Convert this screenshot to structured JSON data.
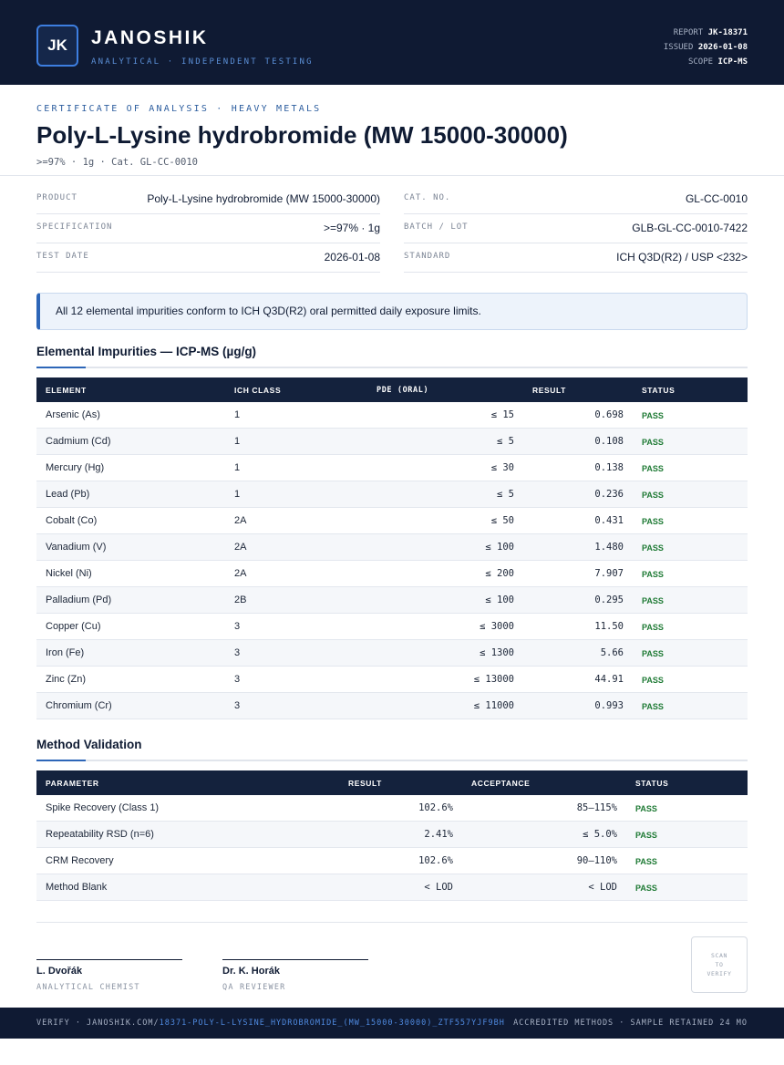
{
  "header": {
    "logo": "JK",
    "brand": "JANOSHIK",
    "tagline": "ANALYTICAL · INDEPENDENT TESTING",
    "report_label": "REPORT",
    "report_value": "JK-18371",
    "issued_label": "ISSUED",
    "issued_value": "2026-01-08",
    "scope_label": "SCOPE",
    "scope_value": "ICP-MS"
  },
  "title_block": {
    "overline": "CERTIFICATE OF ANALYSIS · HEAVY METALS",
    "title": "Poly-L-Lysine hydrobromide (MW 15000-30000)",
    "subline": ">=97% · 1g  ·  Cat. GL-CC-0010"
  },
  "info": {
    "product_label": "PRODUCT",
    "product_value": "Poly-L-Lysine hydrobromide (MW 15000-30000)",
    "cat_label": "CAT. NO.",
    "cat_value": "GL-CC-0010",
    "spec_label": "SPECIFICATION",
    "spec_value": ">=97% · 1g",
    "batch_label": "BATCH / LOT",
    "batch_value": "GLB-GL-CC-0010-7422",
    "date_label": "TEST DATE",
    "date_value": "2026-01-08",
    "standard_label": "STANDARD",
    "standard_value": "ICH Q3D(R2) / USP <232>"
  },
  "notice": "All 12 elemental impurities conform to ICH Q3D(R2) oral permitted daily exposure limits.",
  "impurities": {
    "title": "Elemental Impurities — ICP-MS (µg/g)",
    "headers": [
      "ELEMENT",
      "ICH CLASS",
      "PDE (ORAL)",
      "RESULT",
      "STATUS"
    ],
    "rows": [
      {
        "element": "Arsenic (As)",
        "class": "1",
        "pde": "≤ 15",
        "result": "0.698",
        "status": "PASS"
      },
      {
        "element": "Cadmium (Cd)",
        "class": "1",
        "pde": "≤ 5",
        "result": "0.108",
        "status": "PASS"
      },
      {
        "element": "Mercury (Hg)",
        "class": "1",
        "pde": "≤ 30",
        "result": "0.138",
        "status": "PASS"
      },
      {
        "element": "Lead (Pb)",
        "class": "1",
        "pde": "≤ 5",
        "result": "0.236",
        "status": "PASS"
      },
      {
        "element": "Cobalt (Co)",
        "class": "2A",
        "pde": "≤ 50",
        "result": "0.431",
        "status": "PASS"
      },
      {
        "element": "Vanadium (V)",
        "class": "2A",
        "pde": "≤ 100",
        "result": "1.480",
        "status": "PASS"
      },
      {
        "element": "Nickel (Ni)",
        "class": "2A",
        "pde": "≤ 200",
        "result": "7.907",
        "status": "PASS"
      },
      {
        "element": "Palladium (Pd)",
        "class": "2B",
        "pde": "≤ 100",
        "result": "0.295",
        "status": "PASS"
      },
      {
        "element": "Copper (Cu)",
        "class": "3",
        "pde": "≤ 3000",
        "result": "11.50",
        "status": "PASS"
      },
      {
        "element": "Iron (Fe)",
        "class": "3",
        "pde": "≤ 1300",
        "result": "5.66",
        "status": "PASS"
      },
      {
        "element": "Zinc (Zn)",
        "class": "3",
        "pde": "≤ 13000",
        "result": "44.91",
        "status": "PASS"
      },
      {
        "element": "Chromium (Cr)",
        "class": "3",
        "pde": "≤ 11000",
        "result": "0.993",
        "status": "PASS"
      }
    ]
  },
  "validation": {
    "title": "Method Validation",
    "headers": [
      "PARAMETER",
      "RESULT",
      "ACCEPTANCE",
      "STATUS"
    ],
    "rows": [
      {
        "parameter": "Spike Recovery (Class 1)",
        "result": "102.6%",
        "acceptance": "85–115%",
        "status": "PASS"
      },
      {
        "parameter": "Repeatability RSD (n=6)",
        "result": "2.41%",
        "acceptance": "≤ 5.0%",
        "status": "PASS"
      },
      {
        "parameter": "CRM Recovery",
        "result": "102.6%",
        "acceptance": "90–110%",
        "status": "PASS"
      },
      {
        "parameter": "Method Blank",
        "result": "< LOD",
        "acceptance": "< LOD",
        "status": "PASS"
      }
    ]
  },
  "signatures": [
    {
      "name": "L. Dvořák",
      "role": "ANALYTICAL CHEMIST"
    },
    {
      "name": "Dr. K. Horák",
      "role": "QA REVIEWER"
    }
  ],
  "qr": {
    "line1": "SCAN",
    "line2": "TO",
    "line3": "VERIFY"
  },
  "footer": {
    "verify_prefix": "VERIFY · JANOSHIK.COM/",
    "verify_path": "18371-POLY-L-LYSINE_HYDROBROMIDE_(MW_15000-30000)_ZTF557YJF9BH",
    "right": "ACCREDITED METHODS · SAMPLE RETAINED 24 MO"
  },
  "colors": {
    "navy": "#0f1a33",
    "accent_blue": "#2d66b8",
    "pass_green": "#1e7a34"
  }
}
